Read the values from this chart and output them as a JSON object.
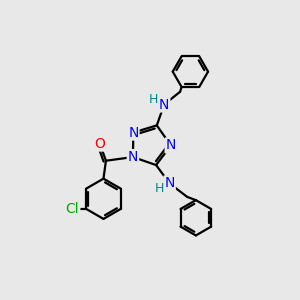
{
  "bg_color": "#e8e8e8",
  "N_color": "#0000ff",
  "O_color": "#ff0000",
  "Cl_color": "#00aa00",
  "C_color": "#000000",
  "H_color": "#008888",
  "bond_lw": 1.6,
  "figsize": [
    3.0,
    3.0
  ],
  "dpi": 100,
  "xlim": [
    -1,
    11
  ],
  "ylim": [
    -1,
    11
  ]
}
